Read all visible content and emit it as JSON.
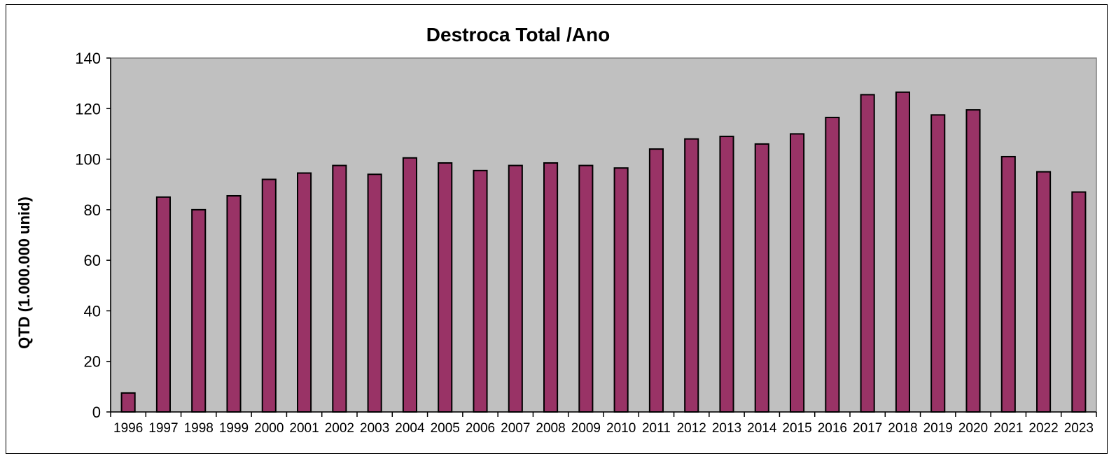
{
  "chart_data": {
    "type": "bar",
    "title": "Destroca Total /Ano",
    "xlabel": "",
    "ylabel": "QTD (1.000.000 unid)",
    "ylim": [
      0,
      140
    ],
    "yticks": [
      0,
      20,
      40,
      60,
      80,
      100,
      120,
      140
    ],
    "grid": false,
    "legend": "none",
    "categories": [
      "1996",
      "1997",
      "1998",
      "1999",
      "2000",
      "2001",
      "2002",
      "2003",
      "2004",
      "2005",
      "2006",
      "2007",
      "2008",
      "2009",
      "2010",
      "2011",
      "2012",
      "2013",
      "2014",
      "2015",
      "2016",
      "2017",
      "2018",
      "2019",
      "2020",
      "2021",
      "2022",
      "2023"
    ],
    "values": [
      7.5,
      85,
      80,
      85.5,
      92,
      94.5,
      97.5,
      94,
      100.5,
      98.5,
      95.5,
      97.5,
      98.5,
      97.5,
      96.5,
      104,
      108,
      109,
      106,
      110,
      116.5,
      125.5,
      126.5,
      117.5,
      119.5,
      101,
      95,
      87
    ],
    "colors": {
      "bar_fill": "#993366",
      "bar_stroke": "#000000",
      "plot_background": "#c0c0c0",
      "axis": "#000000"
    }
  }
}
